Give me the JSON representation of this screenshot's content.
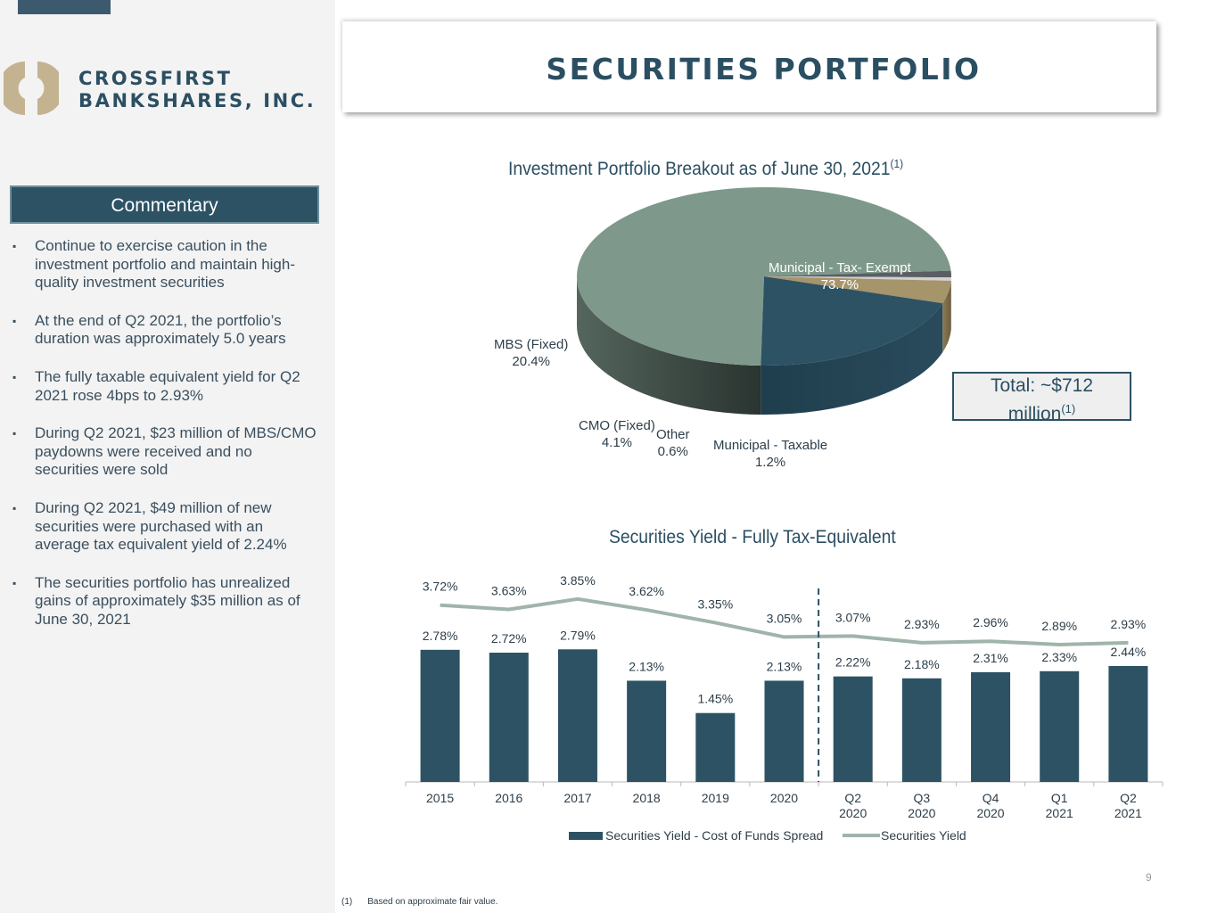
{
  "logo": {
    "line1": "CROSSFIRST",
    "line2": "BANKSHARES, INC."
  },
  "sidebar": {
    "heading": "Commentary",
    "bullet_glyph": "▪",
    "bullets": [
      "Continue to exercise caution in the investment portfolio and maintain high-quality investment securities",
      "At the end of Q2 2021, the portfolio’s duration was approximately 5.0 years",
      "The fully taxable equivalent yield for Q2 2021 rose 4bps to 2.93%",
      "During Q2 2021, $23 million of MBS/CMO paydowns were received and no securities were sold",
      "During Q2 2021, $49 million of new securities were purchased with an average tax equivalent yield of 2.24%",
      "The securities portfolio has unrealized gains of approximately $35 million as of June 30, 2021"
    ]
  },
  "page_title": "SECURITIES PORTFOLIO",
  "pie_title": "Investment Portfolio Breakout as of June 30, 2021",
  "pie_title_note": "(1)",
  "total": {
    "text": "Total: ~$712",
    "text2": "million",
    "note": "(1)"
  },
  "footnote": {
    "mark": "(1)",
    "text": "Based on approximate fair value."
  },
  "page_number": "9",
  "colors": {
    "navy": "#2c5264",
    "sage": "#7e998c",
    "tan": "#a6946b",
    "grey": "#d2d2d2",
    "charcoal": "#5b5e63",
    "line": "#9fb4aa"
  },
  "chart_data": [
    {
      "type": "pie",
      "title": "Investment Portfolio Breakout as of June 30, 2021(1)",
      "slices": [
        {
          "label": "Municipal - Tax- Exempt",
          "value": 73.7,
          "display": "73.7%",
          "color": "#7e998c"
        },
        {
          "label": "MBS (Fixed)",
          "value": 20.4,
          "display": "20.4%",
          "color": "#2c5264"
        },
        {
          "label": "CMO (Fixed)",
          "value": 4.1,
          "display": "4.1%",
          "color": "#a6946b"
        },
        {
          "label": "Other",
          "value": 0.6,
          "display": "0.6%",
          "color": "#d2d2d2"
        },
        {
          "label": "Municipal - Taxable",
          "value": 1.2,
          "display": "1.2%",
          "color": "#5b5e63"
        }
      ]
    },
    {
      "type": "bar",
      "title": "Securities Yield - Fully Tax-Equivalent",
      "categories": [
        {
          "line1": "2015",
          "line2": ""
        },
        {
          "line1": "2016",
          "line2": ""
        },
        {
          "line1": "2017",
          "line2": ""
        },
        {
          "line1": "2018",
          "line2": ""
        },
        {
          "line1": "2019",
          "line2": ""
        },
        {
          "line1": "2020",
          "line2": ""
        },
        {
          "line1": "Q2",
          "line2": "2020"
        },
        {
          "line1": "Q3",
          "line2": "2020"
        },
        {
          "line1": "Q4",
          "line2": "2020"
        },
        {
          "line1": "Q1",
          "line2": "2021"
        },
        {
          "line1": "Q2",
          "line2": "2021"
        }
      ],
      "series": [
        {
          "name": "Securities Yield - Cost of Funds Spread",
          "kind": "bar",
          "values": [
            2.78,
            2.72,
            2.79,
            2.13,
            1.45,
            2.13,
            2.22,
            2.18,
            2.31,
            2.33,
            2.44
          ],
          "labels": [
            "2.78%",
            "2.72%",
            "2.79%",
            "2.13%",
            "1.45%",
            "2.13%",
            "2.22%",
            "2.18%",
            "2.31%",
            "2.33%",
            "2.44%"
          ]
        },
        {
          "name": "Securities Yield",
          "kind": "line",
          "values": [
            3.72,
            3.63,
            3.85,
            3.62,
            3.35,
            3.05,
            3.07,
            2.93,
            2.96,
            2.89,
            2.93
          ],
          "labels": [
            "3.72%",
            "3.63%",
            "3.85%",
            "3.62%",
            "3.35%",
            "3.05%",
            "3.07%",
            "2.93%",
            "2.96%",
            "2.89%",
            "2.93%"
          ]
        }
      ],
      "divider_between": [
        "2020",
        "Q2 2020"
      ],
      "legend_position": "bottom"
    }
  ]
}
